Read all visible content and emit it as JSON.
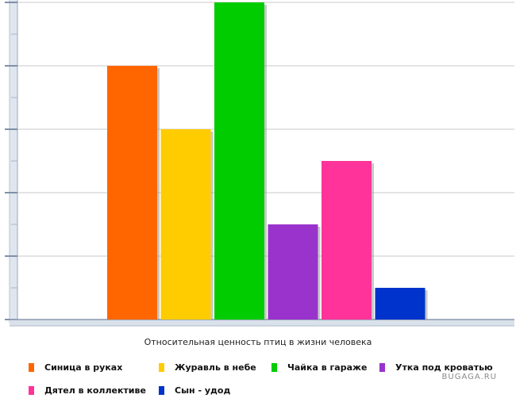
{
  "chart_data": {
    "type": "bar",
    "title": "",
    "caption": "Относительная ценность птиц в жизни человека",
    "categories": [
      "Синица в руках",
      "Журавль в небе",
      "Чайка в гараже",
      "Утка под кроватью",
      "Дятел в коллективе",
      "Сын - удод"
    ],
    "values": [
      8,
      6,
      10,
      3,
      5,
      1
    ],
    "colors": [
      "#ff6600",
      "#ffcc00",
      "#00cc00",
      "#9933cc",
      "#ff3399",
      "#0033cc"
    ],
    "ylim": [
      0,
      10
    ],
    "y_tick_labels": "none",
    "grid": true,
    "legend_position": "bottom"
  },
  "watermark": "BUGAGA.RU"
}
